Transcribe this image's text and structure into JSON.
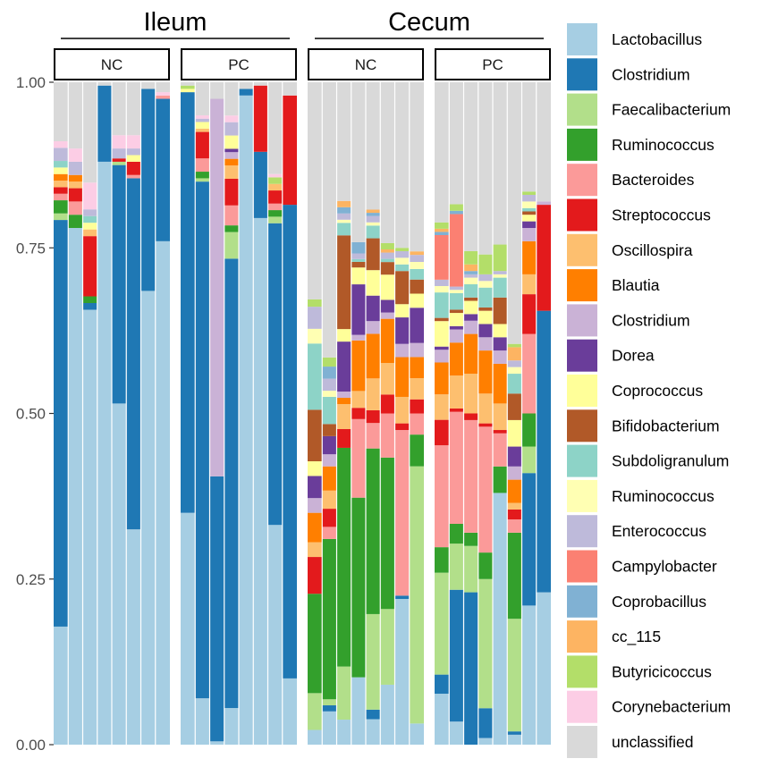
{
  "chart_data": {
    "type": "bar",
    "stacked": true,
    "normalized": true,
    "title": "",
    "xlabel": "",
    "ylabel": "",
    "ylim": [
      0,
      1
    ],
    "y_ticks": [
      "0.00",
      "0.25",
      "0.50",
      "0.75",
      "1.00"
    ],
    "groups": [
      {
        "label": "Ileum",
        "panels": [
          "NC",
          "PC"
        ]
      },
      {
        "label": "Cecum",
        "panels": [
          "NC",
          "PC"
        ]
      }
    ],
    "taxa": [
      "Lactobacillus",
      "Clostridium",
      "Faecalibacterium",
      "Ruminococcus",
      "Bacteroides",
      "Streptococcus",
      "Oscillospira",
      "Blautia",
      "Clostridium",
      "Dorea",
      "Coprococcus",
      "Bifidobacterium",
      "Subdoligranulum",
      "Ruminococcus",
      "Enterococcus",
      "Campylobacter",
      "Coprobacillus",
      "cc_115",
      "Butyricicoccus",
      "Corynebacterium",
      "unclassified"
    ],
    "colors": [
      "#a6cee3",
      "#1f78b4",
      "#b2df8a",
      "#33a02c",
      "#fb9a99",
      "#e31a1c",
      "#fdbf6f",
      "#ff7f00",
      "#cab2d6",
      "#6a3d9a",
      "#ffff99",
      "#b15928",
      "#8dd3c7",
      "#ffffb3",
      "#bebada",
      "#fb8072",
      "#80b1d3",
      "#fdb462",
      "#b3de69",
      "#fccde5",
      "#d9d9d9"
    ],
    "panels": [
      {
        "group": "Ileum",
        "label": "NC",
        "samples": [
          [
            0.18,
            0.62,
            0.01,
            0.02,
            0.01,
            0.01,
            0.01,
            0.01,
            0,
            0,
            0.01,
            0,
            0.01,
            0,
            0.02,
            0,
            0,
            0,
            0,
            0.01,
            0.09
          ],
          [
            0.78,
            0,
            0,
            0.02,
            0.02,
            0.02,
            0.01,
            0.01,
            0,
            0,
            0,
            0,
            0,
            0,
            0.02,
            0,
            0,
            0,
            0,
            0.02,
            0.1
          ],
          [
            0.65,
            0.01,
            0,
            0.01,
            0.0,
            0.09,
            0.01,
            0,
            0,
            0,
            0.01,
            0,
            0.01,
            0,
            0.01,
            0,
            0,
            0,
            0,
            0.04,
            0.15
          ],
          [
            0.88,
            0.115,
            0,
            0,
            0,
            0,
            0,
            0,
            0,
            0,
            0,
            0,
            0,
            0,
            0,
            0,
            0,
            0,
            0,
            0,
            0.005
          ],
          [
            0.515,
            0.36,
            0.005,
            0,
            0,
            0.005,
            0,
            0,
            0,
            0,
            0,
            0,
            0,
            0,
            0.015,
            0,
            0,
            0,
            0,
            0.02,
            0.08
          ],
          [
            0.325,
            0.53,
            0,
            0,
            0.005,
            0.02,
            0,
            0,
            0,
            0,
            0.01,
            0,
            0,
            0,
            0.01,
            0,
            0,
            0,
            0,
            0.02,
            0.08
          ],
          [
            0.685,
            0.305,
            0,
            0,
            0,
            0,
            0,
            0,
            0,
            0,
            0,
            0,
            0,
            0,
            0,
            0,
            0,
            0,
            0,
            0,
            0.01
          ],
          [
            0.76,
            0.215,
            0,
            0,
            0.005,
            0,
            0,
            0,
            0,
            0,
            0,
            0,
            0,
            0,
            0,
            0,
            0,
            0,
            0,
            0.005,
            0.015
          ]
        ]
      },
      {
        "group": "Ileum",
        "label": "PC",
        "samples": [
          [
            0.35,
            0.635,
            0,
            0,
            0,
            0,
            0,
            0,
            0,
            0,
            0.005,
            0,
            0,
            0,
            0,
            0,
            0,
            0,
            0.005,
            0,
            0.005
          ],
          [
            0.07,
            0.78,
            0.005,
            0.01,
            0.02,
            0.04,
            0.005,
            0,
            0,
            0,
            0.01,
            0,
            0,
            0,
            0.005,
            0,
            0,
            0,
            0,
            0.005,
            0.05
          ],
          [
            0.005,
            0.4,
            0,
            0,
            0,
            0,
            0,
            0,
            0.57,
            0,
            0,
            0,
            0,
            0,
            0,
            0,
            0,
            0,
            0,
            0,
            0.025
          ],
          [
            0.055,
            0.675,
            0.04,
            0.01,
            0.03,
            0.04,
            0.02,
            0.01,
            0.01,
            0.005,
            0.02,
            0,
            0,
            0,
            0.02,
            0,
            0,
            0,
            0,
            0.01,
            0.05
          ],
          [
            0.98,
            0.01,
            0,
            0,
            0,
            0,
            0,
            0,
            0,
            0,
            0,
            0,
            0,
            0,
            0,
            0,
            0,
            0,
            0,
            0,
            0.01
          ],
          [
            0.795,
            0.1,
            0,
            0,
            0,
            0.1,
            0,
            0,
            0,
            0,
            0,
            0,
            0,
            0,
            0,
            0,
            0,
            0,
            0,
            0,
            0.005
          ],
          [
            0.335,
            0.46,
            0.01,
            0.01,
            0.01,
            0.02,
            0.01,
            0,
            0,
            0,
            0,
            0,
            0,
            0,
            0,
            0,
            0,
            0,
            0.01,
            0.005,
            0.14
          ],
          [
            0.1,
            0.715,
            0,
            0,
            0,
            0.165,
            0,
            0,
            0,
            0,
            0,
            0,
            0,
            0,
            0,
            0,
            0,
            0,
            0,
            0,
            0.02
          ]
        ]
      },
      {
        "group": "Cecum",
        "label": "NC",
        "samples": [
          [
            0.02,
            0,
            0.05,
            0.135,
            0,
            0.05,
            0.02,
            0.04,
            0.02,
            0.03,
            0.02,
            0.07,
            0.09,
            0.02,
            0.03,
            0,
            0,
            0,
            0.01,
            0,
            0.295
          ],
          [
            0.055,
            0.01,
            0.01,
            0.265,
            0.02,
            0.03,
            0.03,
            0.04,
            0.02,
            0.03,
            0,
            0.02,
            0.045,
            0.01,
            0.02,
            0,
            0.02,
            0,
            0.015,
            0,
            0.455
          ],
          [
            0.04,
            0,
            0.085,
            0.35,
            0,
            0.03,
            0.04,
            0.01,
            0.01,
            0.08,
            0.02,
            0.15,
            0.02,
            0.005,
            0.01,
            0,
            0.01,
            0.01,
            0,
            0,
            0.19
          ],
          [
            0.12,
            0,
            0,
            0.32,
            0.14,
            0.02,
            0.03,
            0.09,
            0.01,
            0.09,
            0.03,
            0.01,
            0.005,
            0,
            0.01,
            0,
            0.02,
            0,
            0,
            0,
            0.285
          ],
          [
            0.04,
            0.015,
            0.15,
            0.26,
            0.04,
            0.02,
            0.05,
            0.07,
            0.02,
            0.04,
            0.04,
            0.05,
            0.02,
            0.005,
            0.01,
            0,
            0.005,
            0.005,
            0,
            0,
            0.2
          ],
          [
            0.095,
            0,
            0.12,
            0.24,
            0.07,
            0.03,
            0.05,
            0.07,
            0.01,
            0.02,
            0.04,
            0.02,
            0.005,
            0,
            0.01,
            0,
            0,
            0.005,
            0.01,
            0,
            0.255
          ],
          [
            0.22,
            0.005,
            0,
            0,
            0.25,
            0.01,
            0.04,
            0.06,
            0.02,
            0.04,
            0.02,
            0.05,
            0.01,
            0.01,
            0.01,
            0,
            0,
            0,
            0.005,
            0,
            0.25
          ],
          [
            0.03,
            0,
            0.365,
            0.045,
            0.03,
            0.02,
            0.03,
            0.03,
            0.02,
            0.05,
            0.02,
            0.02,
            0.015,
            0.01,
            0.01,
            0,
            0,
            0.005,
            0,
            0,
            0.24
          ]
        ]
      },
      {
        "group": "Cecum",
        "label": "PC",
        "samples": [
          [
            0.08,
            0.03,
            0.16,
            0.04,
            0.16,
            0.04,
            0.04,
            0.05,
            0.02,
            0.005,
            0.04,
            0.005,
            0.04,
            0.01,
            0.01,
            0.07,
            0.005,
            0.005,
            0.01,
            0,
            0.22
          ],
          [
            0.035,
            0.2,
            0.07,
            0.03,
            0.17,
            0.005,
            0.05,
            0.05,
            0.02,
            0.005,
            0.02,
            0.005,
            0.025,
            0.005,
            0.005,
            0.11,
            0.005,
            0,
            0.01,
            0,
            0.185
          ],
          [
            0,
            0.23,
            0.07,
            0.02,
            0.17,
            0.01,
            0.06,
            0.06,
            0.02,
            0.01,
            0.02,
            0.005,
            0.02,
            0.01,
            0.005,
            0,
            0.005,
            0.01,
            0.02,
            0,
            0.255
          ],
          [
            0.01,
            0.045,
            0.195,
            0.04,
            0.19,
            0.005,
            0.045,
            0.065,
            0.02,
            0.02,
            0.02,
            0.005,
            0.03,
            0.01,
            0.01,
            0,
            0,
            0,
            0.03,
            0,
            0.26
          ],
          [
            0.38,
            0,
            0,
            0.04,
            0.05,
            0.005,
            0.04,
            0.06,
            0.02,
            0.02,
            0.02,
            0.04,
            0.03,
            0.005,
            0.005,
            0,
            0,
            0,
            0.04,
            0,
            0.245
          ],
          [
            0.015,
            0.005,
            0.17,
            0.13,
            0.02,
            0.015,
            0.01,
            0.035,
            0.02,
            0.03,
            0.04,
            0.04,
            0.03,
            0.01,
            0.01,
            0,
            0,
            0.02,
            0.005,
            0,
            0.395
          ],
          [
            0.21,
            0.2,
            0.04,
            0.05,
            0.12,
            0.06,
            0.03,
            0.05,
            0.02,
            0.01,
            0.01,
            0.005,
            0.005,
            0.01,
            0.01,
            0,
            0,
            0,
            0.005,
            0,
            0.165
          ],
          [
            0.23,
            0.425,
            0,
            0,
            0,
            0.16,
            0,
            0,
            0.005,
            0,
            0,
            0,
            0,
            0,
            0,
            0,
            0,
            0,
            0,
            0,
            0.18
          ]
        ]
      }
    ]
  }
}
